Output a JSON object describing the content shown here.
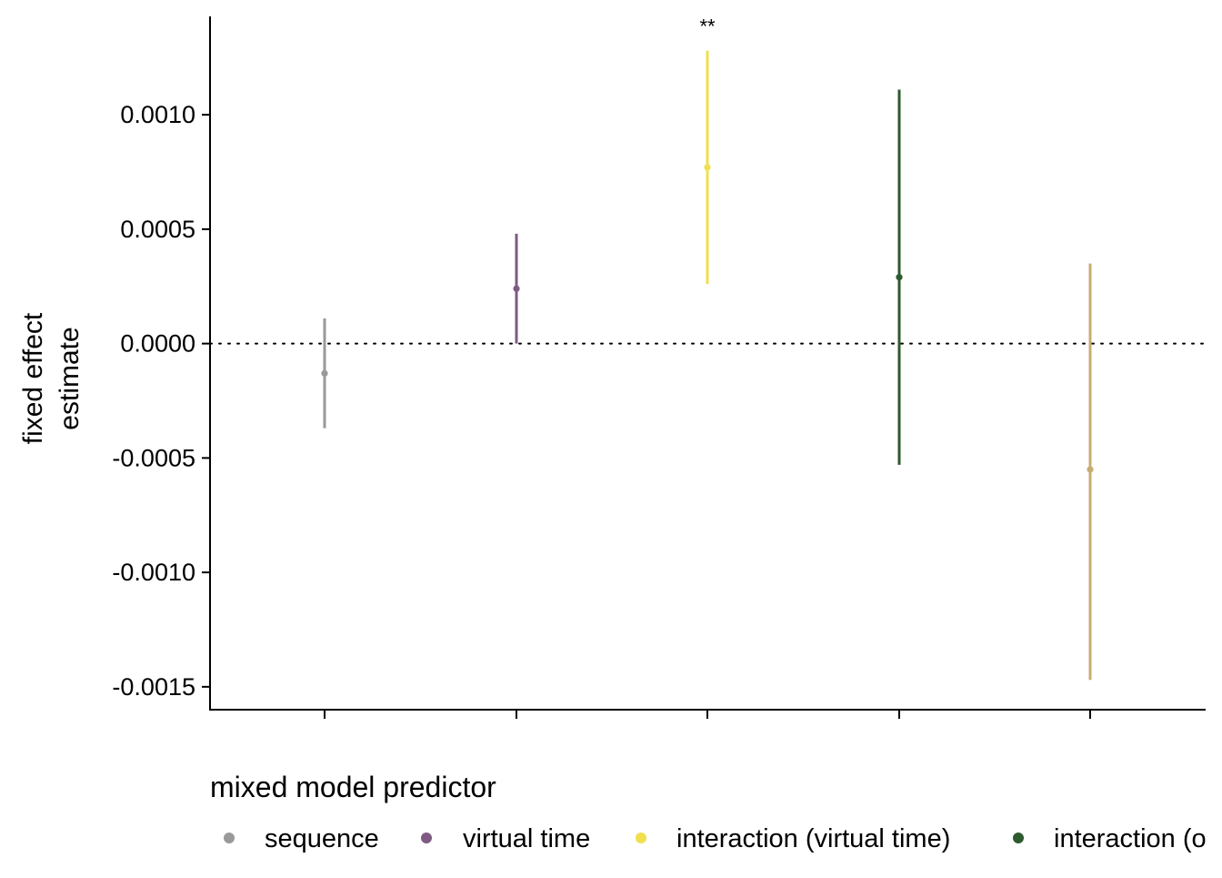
{
  "chart_data": {
    "type": "scatter",
    "ylabel": [
      "fixed effect",
      "estimate"
    ],
    "xlabel": "",
    "ylim": [
      -0.0016,
      0.00143
    ],
    "y_ticks": [
      {
        "value": 0.001,
        "label": "0.0010"
      },
      {
        "value": 0.0005,
        "label": "0.0005"
      },
      {
        "value": 0.0,
        "label": "0.0000"
      },
      {
        "value": -0.0005,
        "label": "-0.0005"
      },
      {
        "value": -0.001,
        "label": "-0.0010"
      },
      {
        "value": -0.0015,
        "label": "-0.0015"
      }
    ],
    "reference_line": {
      "y": 0,
      "style": "dotted"
    },
    "grid": false,
    "legend": {
      "title": "mixed model predictor",
      "position": "bottom"
    },
    "series": [
      {
        "name": "sequence",
        "color": "#999999",
        "estimate": -0.00013,
        "lower": -0.00037,
        "upper": 0.00011,
        "annotation": ""
      },
      {
        "name": "virtual time",
        "color": "#7f5a83",
        "estimate": 0.00024,
        "lower": 0.0,
        "upper": 0.00048,
        "annotation": ""
      },
      {
        "name": "interaction (virtual time)",
        "color": "#f0e04d",
        "estimate": 0.00077,
        "lower": 0.00026,
        "upper": 0.00128,
        "annotation": "**"
      },
      {
        "name": "interaction (o",
        "color": "#2d5a2e",
        "estimate": 0.00029,
        "lower": -0.00053,
        "upper": 0.00111,
        "annotation": ""
      },
      {
        "name": "",
        "color": "#c8ad72",
        "estimate": -0.00055,
        "lower": -0.00147,
        "upper": 0.00035,
        "annotation": ""
      }
    ]
  }
}
